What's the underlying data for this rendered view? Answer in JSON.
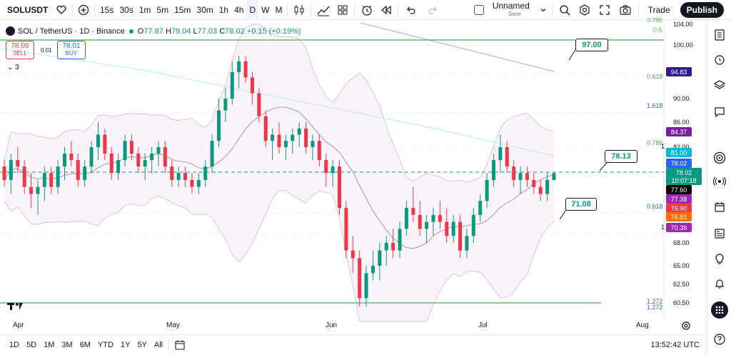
{
  "toolbar": {
    "symbol": "SOLUSDT",
    "timeframes": [
      "15s",
      "30s",
      "1m",
      "5m",
      "15m",
      "30m",
      "1h",
      "4h",
      "D",
      "W",
      "M"
    ],
    "active_timeframe": "D",
    "layout_name": "Unnamed",
    "layout_status": "Save",
    "trade_label": "Trade",
    "publish_label": "Publish"
  },
  "legend": {
    "title": "SOL / TetherUS · 1D · Binance",
    "open_label": "O",
    "open": "77.87",
    "high_label": "H",
    "high": "79.04",
    "low_label": "L",
    "low": "77.03",
    "close_label": "C",
    "close": "78.02",
    "change": "+0.15 (+0.19%)",
    "sell_price": "78.00",
    "sell_label": "SELL",
    "spread": "0.01",
    "buy_price": "78.01",
    "buy_label": "BUY",
    "indicators_count": "3"
  },
  "price_axis": {
    "labels": [
      "104.00",
      "100.00",
      "95.00",
      "90.00",
      "86.00",
      "82.00",
      "68.00",
      "65.00",
      "62.50",
      "60.50"
    ],
    "top_partial": "0.786"
  },
  "badges": [
    {
      "value": "94.83",
      "color": "#311b92"
    },
    {
      "value": "84.37",
      "color": "#7b1fa2"
    },
    {
      "value": "81.00",
      "color": "#00bcd4"
    },
    {
      "value": "78.02",
      "color": "#2962ff"
    },
    {
      "value": "78.02",
      "color": "#089981"
    },
    {
      "value": "10:07:18",
      "color": "#089981"
    },
    {
      "value": "77.60",
      "color": "#000000"
    },
    {
      "value": "77.38",
      "color": "#9c27b0"
    },
    {
      "value": "76.90",
      "color": "#f23645"
    },
    {
      "value": "76.81",
      "color": "#ff6d00"
    },
    {
      "value": "70.39",
      "color": "#9c27b0"
    }
  ],
  "fib_labels": [
    {
      "text": "0.5",
      "color": "#4caf50"
    },
    {
      "text": "0.618",
      "color": "#4caf50"
    },
    {
      "text": "1.618",
      "color": "#2962ff"
    },
    {
      "text": "0.786",
      "color": "#4caf50"
    },
    {
      "text": "1",
      "color": "#131722"
    },
    {
      "text": "0.618",
      "color": "#2962ff"
    },
    {
      "text": "1",
      "color": "#131722"
    },
    {
      "text": "1.272",
      "color": "#2962ff"
    },
    {
      "text": "1.272",
      "color": "#2962ff"
    }
  ],
  "callouts": [
    "97.00",
    "78.13",
    "71.08"
  ],
  "date_labels": [
    "Apr",
    "May",
    "Jun",
    "Jul",
    "Aug"
  ],
  "ranges": [
    "1D",
    "5D",
    "1M",
    "3M",
    "6M",
    "YTD",
    "1Y",
    "5Y",
    "All"
  ],
  "clock": "13:52:42 UTC",
  "colors": {
    "up": "#089981",
    "down": "#f23645",
    "accent": "#2962ff"
  },
  "icons": [
    "heart-icon",
    "plus-icon",
    "candles-icon",
    "indicators-icon",
    "layout-icon",
    "alert-icon",
    "replay-icon",
    "undo-icon",
    "redo-icon",
    "chevron-down-icon",
    "search-icon",
    "settings-icon",
    "fullscreen-icon",
    "camera-icon",
    "watchlist-icon",
    "clock-icon",
    "layers-icon",
    "chat-icon",
    "target-icon",
    "broadcast-icon",
    "calendar-icon",
    "news-icon",
    "lightbulb-icon",
    "bell-icon",
    "grid-icon",
    "help-icon",
    "calendar-range-icon",
    "tv-logo-icon"
  ],
  "chart_data": {
    "type": "candlestick",
    "symbol": "SOL / TetherUS",
    "interval": "1D",
    "x": [
      "Apr",
      "May",
      "Jun",
      "Jul",
      "Aug"
    ],
    "candles": [
      [
        79,
        80,
        76,
        77
      ],
      [
        77,
        81,
        75,
        80
      ],
      [
        80,
        82,
        78,
        79
      ],
      [
        79,
        80,
        75,
        76
      ],
      [
        76,
        78,
        73,
        75
      ],
      [
        75,
        77,
        72,
        76
      ],
      [
        76,
        79,
        74,
        78
      ],
      [
        78,
        79,
        75,
        76
      ],
      [
        76,
        80,
        75,
        79
      ],
      [
        79,
        82,
        77,
        81
      ],
      [
        81,
        83,
        79,
        80
      ],
      [
        80,
        81,
        76,
        77
      ],
      [
        77,
        80,
        76,
        79
      ],
      [
        79,
        83,
        78,
        82
      ],
      [
        82,
        86,
        80,
        84
      ],
      [
        84,
        85,
        80,
        81
      ],
      [
        81,
        82,
        77,
        78
      ],
      [
        78,
        81,
        77,
        80
      ],
      [
        80,
        84,
        79,
        83
      ],
      [
        83,
        84,
        80,
        81
      ],
      [
        81,
        82,
        78,
        79
      ],
      [
        79,
        81,
        77,
        80
      ],
      [
        80,
        82,
        78,
        81
      ],
      [
        81,
        83,
        79,
        82
      ],
      [
        82,
        83,
        78,
        79
      ],
      [
        79,
        80,
        76,
        77
      ],
      [
        77,
        79,
        76,
        78
      ],
      [
        78,
        79,
        76,
        77
      ],
      [
        77,
        78,
        75,
        76
      ],
      [
        76,
        78,
        75,
        77
      ],
      [
        77,
        80,
        76,
        79
      ],
      [
        79,
        84,
        78,
        83
      ],
      [
        83,
        90,
        82,
        88
      ],
      [
        88,
        92,
        86,
        90
      ],
      [
        90,
        97,
        89,
        95
      ],
      [
        95,
        98,
        92,
        97
      ],
      [
        97,
        98,
        93,
        94
      ],
      [
        94,
        95,
        89,
        91
      ],
      [
        91,
        92,
        86,
        87
      ],
      [
        87,
        88,
        82,
        83
      ],
      [
        83,
        85,
        80,
        84
      ],
      [
        84,
        86,
        81,
        82
      ],
      [
        82,
        84,
        80,
        83
      ],
      [
        83,
        85,
        81,
        84
      ],
      [
        84,
        86,
        82,
        85
      ],
      [
        85,
        86,
        81,
        82
      ],
      [
        82,
        84,
        80,
        83
      ],
      [
        83,
        84,
        79,
        80
      ],
      [
        80,
        81,
        76,
        78
      ],
      [
        78,
        80,
        76,
        79
      ],
      [
        79,
        80,
        72,
        73
      ],
      [
        73,
        74,
        66,
        67
      ],
      [
        67,
        69,
        64,
        66
      ],
      [
        66,
        67,
        60,
        61
      ],
      [
        61,
        65,
        60,
        64
      ],
      [
        64,
        67,
        63,
        65
      ],
      [
        65,
        68,
        63,
        67
      ],
      [
        67,
        69,
        65,
        68
      ],
      [
        68,
        70,
        66,
        67
      ],
      [
        67,
        71,
        66,
        70
      ],
      [
        70,
        74,
        69,
        73
      ],
      [
        73,
        76,
        71,
        72
      ],
      [
        72,
        74,
        69,
        70
      ],
      [
        70,
        72,
        68,
        71
      ],
      [
        71,
        73,
        69,
        72
      ],
      [
        72,
        74,
        70,
        71
      ],
      [
        71,
        73,
        68,
        69
      ],
      [
        69,
        72,
        68,
        71
      ],
      [
        71,
        72,
        66,
        67
      ],
      [
        67,
        70,
        66,
        69
      ],
      [
        69,
        73,
        68,
        72
      ],
      [
        72,
        75,
        71,
        74
      ],
      [
        74,
        78,
        73,
        77
      ],
      [
        77,
        81,
        76,
        80
      ],
      [
        80,
        84,
        78,
        82
      ],
      [
        82,
        83,
        78,
        79
      ],
      [
        79,
        80,
        76,
        77
      ],
      [
        77,
        79,
        75,
        78
      ],
      [
        78,
        79,
        76,
        77
      ],
      [
        77,
        78,
        75,
        76
      ],
      [
        76,
        77,
        74,
        75
      ],
      [
        75,
        78,
        74,
        77
      ],
      [
        77,
        78,
        77,
        78
      ]
    ],
    "horizontal_levels": [
      97.0,
      78.13,
      60.5
    ],
    "bollinger": {
      "upper_peak": 100,
      "lower_min": 58
    },
    "price_range": [
      58,
      104
    ]
  }
}
